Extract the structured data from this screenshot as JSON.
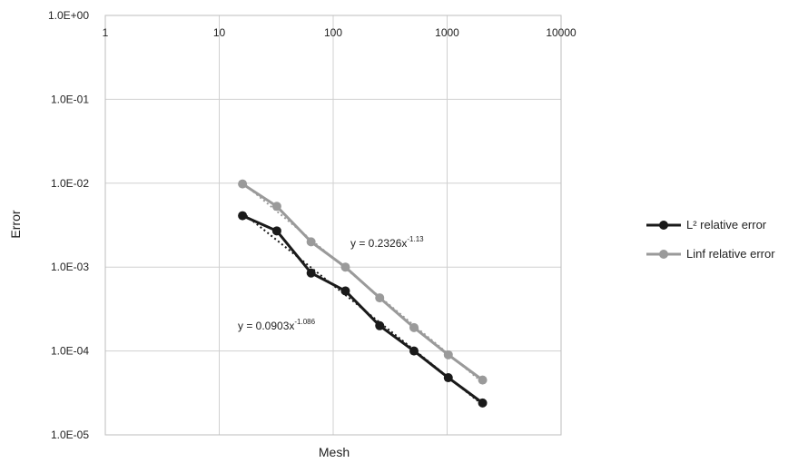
{
  "chart_data": {
    "type": "scatter",
    "title": "",
    "xlabel": "Mesh",
    "ylabel": "Error",
    "xscale": "log",
    "yscale": "log",
    "xlim": [
      1,
      10000
    ],
    "ylim": [
      1e-05,
      1
    ],
    "x_axis_position": "top",
    "grid": true,
    "x_ticks": [
      1,
      10,
      100,
      1000,
      10000
    ],
    "x_tick_labels": [
      "1",
      "10",
      "100",
      "1000",
      "10000"
    ],
    "y_ticks": [
      1,
      0.1,
      0.01,
      0.001,
      0.0001,
      1e-05
    ],
    "y_tick_labels": [
      "1.0E+00",
      "1.0E-01",
      "1.0E-02",
      "1.0E-03",
      "1.0E-04",
      "1.0E-05"
    ],
    "legend_position": "right",
    "series": [
      {
        "name": "L² relative error",
        "color": "#1a1a1a",
        "x": [
          16,
          32,
          64,
          128,
          256,
          512,
          1024,
          2048
        ],
        "y": [
          0.0041,
          0.0027,
          0.00085,
          0.00052,
          0.0002,
          0.0001,
          4.8e-05,
          2.4e-05
        ],
        "trendline": {
          "a": 0.0903,
          "b": -1.086,
          "label": "y = 0.0903x",
          "exponent": "-1.086"
        }
      },
      {
        "name": "Linf relative error",
        "color": "#9a9a9a",
        "x": [
          16,
          32,
          64,
          128,
          256,
          512,
          1024,
          2048
        ],
        "y": [
          0.0098,
          0.0053,
          0.002,
          0.001,
          0.00043,
          0.00019,
          9e-05,
          4.5e-05
        ],
        "trendline": {
          "a": 0.2326,
          "b": -1.13,
          "label": "y = 0.2326x",
          "exponent": "-1.13"
        }
      }
    ]
  }
}
